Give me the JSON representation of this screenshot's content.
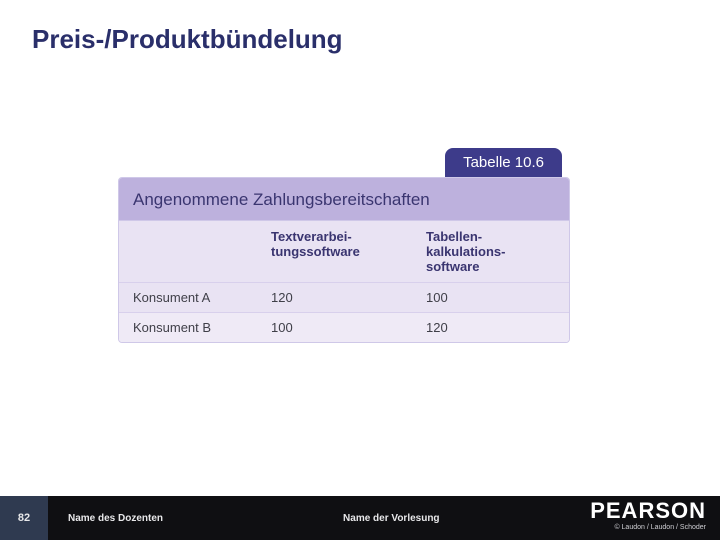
{
  "slide": {
    "title": "Preis-/Produktbündelung"
  },
  "table": {
    "tab_label": "Tabelle 10.6",
    "header_text": "Angenommene Zahlungsbereitschaften",
    "columns": {
      "col0": "",
      "col1": "Textverarbei-\ntungssoftware",
      "col2": "Tabellen-\nkalkulations-\nsoftware"
    },
    "rows": [
      {
        "label": "Konsument A",
        "v1": "120",
        "v2": "100"
      },
      {
        "label": "Konsument B",
        "v1": "100",
        "v2": "120"
      }
    ]
  },
  "footer": {
    "page": "82",
    "dozent": "Name des Dozenten",
    "vorlesung": "Name der Vorlesung",
    "brand": "PEARSON",
    "copyright": "© Laudon / Laudon / Schoder"
  },
  "colors": {
    "title_color": "#2a2f6a",
    "tab_bg": "#3d3b8a",
    "tab_fg": "#ffffff",
    "header_bg": "#bdb1dd",
    "header_fg": "#3a3570",
    "row_bg_a": "#e9e3f3",
    "row_bg_b": "#efeaf6",
    "border": "#cfc8e8",
    "footer_bg": "#0f0f12",
    "footer_pageblock_bg": "#2f3a50"
  }
}
